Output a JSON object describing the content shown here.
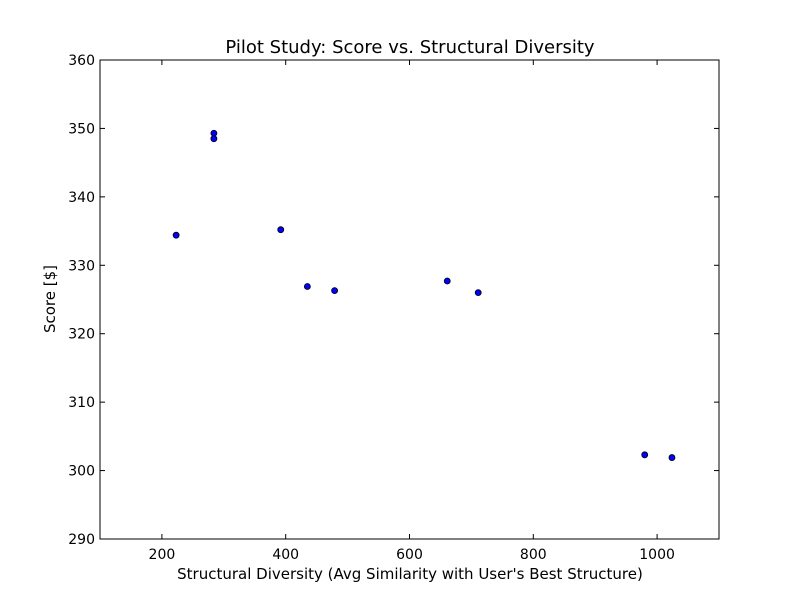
{
  "chart_data": {
    "type": "scatter",
    "title": "Pilot Study: Score vs. Structural Diversity",
    "xlabel": "Structural Diversity (Avg Similarity with User's Best Structure)",
    "ylabel": "Score [$]",
    "xlim": [
      100,
      1100
    ],
    "ylim": [
      290,
      360
    ],
    "xticks": [
      200,
      400,
      600,
      800,
      1000
    ],
    "yticks": [
      290,
      300,
      310,
      320,
      330,
      340,
      350,
      360
    ],
    "grid": false,
    "marker_color": "#0000ff",
    "marker_edge_color": "#000000",
    "series": [
      {
        "x": [
          223,
          284,
          284,
          392,
          435,
          479,
          661,
          711,
          980,
          1024
        ],
        "y": [
          334.4,
          349.3,
          348.5,
          335.2,
          326.9,
          326.3,
          327.7,
          326.0,
          302.3,
          301.9
        ]
      }
    ]
  }
}
